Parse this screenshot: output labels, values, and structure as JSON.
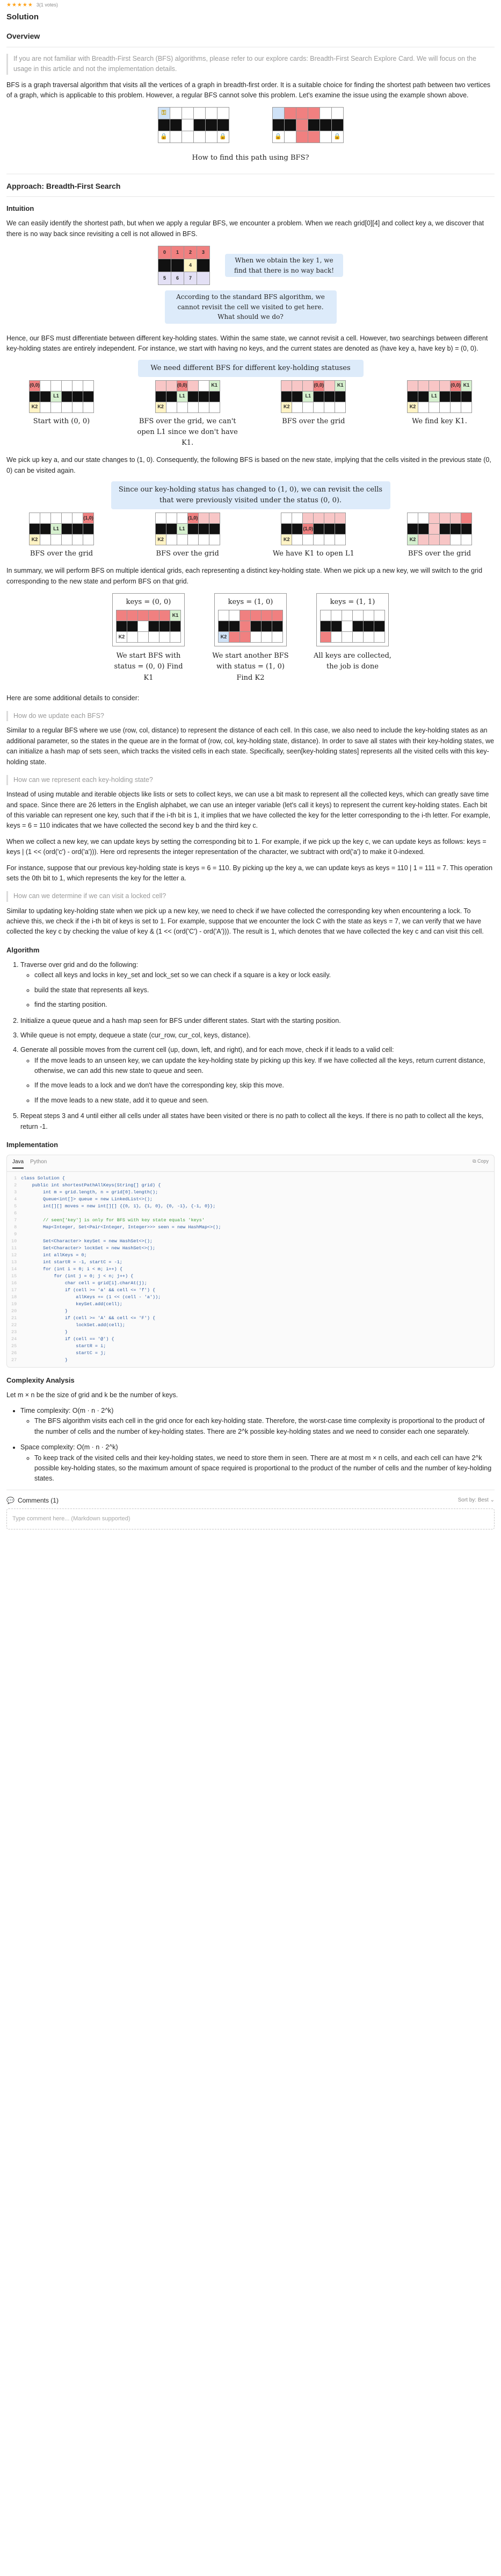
{
  "header": {
    "stars": "★★★★★",
    "votes": "3(1 votes)",
    "title": "Solution"
  },
  "overview": {
    "heading": "Overview",
    "quote": "If you are not familiar with Breadth-First Search (BFS) algorithms, please refer to our explore cards: Breadth-First Search Explore Card. We will focus on the usage in this article and not the implementation details.",
    "para": "BFS is a graph traversal algorithm that visits all the vertices of a graph in breadth-first order. It is a suitable choice for finding the shortest path between two vertices of a graph, which is applicable to this problem. However, a regular BFS cannot solve this problem. Let's examine the issue using the example shown above.",
    "caption": "How to find this path using BFS?"
  },
  "approach": {
    "heading": "Approach: Breadth-First Search",
    "intuition_heading": "Intuition",
    "intuition_p1": "We can easily identify the shortest path, but when we apply a regular BFS, we encounter a problem. When we reach grid[0][4] and collect key a, we discover that there is no way back since revisiting a cell is not allowed in BFS.",
    "fig2_note_right": "When we obtain the key 1, we find that there is no way back!",
    "fig2_note_bottom": "According to the standard BFS algorithm, we cannot revisit the cell we visited to get here. What should we do?",
    "p2": "Hence, our BFS must differentiate between different key-holding states. Within the same state, we cannot revisit a cell. However, two searchings between different key-holding states are entirely independent. For instance, we start with having no keys, and the current states are denoted as (have key a, have key b) = (0, 0).",
    "fig3_banner": "We need different BFS for different key-holding statuses",
    "fig3_captions": [
      "Start with (0, 0)",
      "BFS over the grid, we can't open L1 since we don't have K1.",
      "BFS over the grid",
      "We find key K1."
    ],
    "p3": "We pick up key a, and our state changes to (1, 0). Consequently, the following BFS is based on the new state, implying that the cells visited in the previous state (0, 0) can be visited again.",
    "fig4_banner": "Since our key-holding status has changed to (1, 0), we can revisit the cells that were previously visited under the status (0, 0).",
    "fig4_captions": [
      "BFS over the grid",
      "BFS over the grid",
      "We have K1 to open L1",
      "BFS over the grid"
    ],
    "p4": "In summary, we will perform BFS on multiple identical grids, each representing a distinct key-holding state. When we pick up a new key, we will switch to the grid corresponding to the new state and perform BFS on that grid.",
    "fig5_keys": [
      "keys = (0, 0)",
      "keys = (1, 0)",
      "keys = (1, 1)"
    ],
    "fig5_captions": [
      "We start BFS with status = (0, 0) Find K1",
      "We start another BFS with status = (1, 0) Find K2",
      "All keys are collected, the job is done"
    ],
    "p5": "Here are some additional details to consider:",
    "q1": "How do we update each BFS?",
    "q1_p": "Similar to a regular BFS where we use (row, col, distance) to represent the distance of each cell. In this case, we also need to include the key-holding states as an additional parameter, so the states in the queue are in the format of (row, col, key-holding state, distance). In order to save all states with their key-holding states, we can initialize a hash map of sets seen, which tracks the visited cells in each state. Specifically, seen[key-holding states] represents all the visited cells with this key-holding state.",
    "q2": "How can we represent each key-holding state?",
    "q2_p1": "Instead of using mutable and iterable objects like lists or sets to collect keys, we can use a bit mask to represent all the collected keys, which can greatly save time and space. Since there are 26 letters in the English alphabet, we can use an integer variable (let's call it keys) to represent the current key-holding states. Each bit of this variable can represent one key, such that if the i-th bit is 1, it implies that we have collected the key for the letter corresponding to the i-th letter. For example, keys = 6 = 110 indicates that we have collected the second key b and the third key c.",
    "q2_p2": "When we collect a new key, we can update keys by setting the corresponding bit to 1. For example, if we pick up the key c, we can update keys as follows: keys = keys | (1 << (ord('c') - ord('a'))). Here ord represents the integer representation of the character, we subtract with ord('a') to make it 0-indexed.",
    "q2_p3": "For instance, suppose that our previous key-holding state is keys = 6 = 110. By picking up the key a, we can update keys as keys = 110 | 1 = 111 = 7. This operation sets the 0th bit to 1, which represents the key for the letter a.",
    "q3": "How can we determine if we can visit a locked cell?",
    "q3_p": "Similar to updating key-holding state when we pick up a new key, we need to check if we have collected the corresponding key when encountering a lock. To achieve this, we check if the i-th bit of keys is set to 1. For example, suppose that we encounter the lock C with the state as keys = 7, we can verify that we have collected the key c by checking the value of key & (1 << (ord('C') - ord('A'))). The result is 1, which denotes that we have collected the key c and can visit this cell."
  },
  "algorithm": {
    "heading": "Algorithm",
    "steps": [
      "Traverse over grid and do the following:",
      "Initialize a queue queue and a hash map seen for BFS under different states. Start with the starting position.",
      "While queue is not empty, dequeue a state (cur_row, cur_col, keys, distance).",
      "Generate all possible moves from the current cell (up, down, left, and right), and for each move, check if it leads to a valid cell:",
      "Repeat steps 3 and 4 until either all cells under all states have been visited or there is no path to collect all the keys. If there is no path to collect all the keys, return -1."
    ],
    "substeps1": [
      "collect all keys and locks in key_set and lock_set so we can check if a square is a key or lock easily.",
      "build the state that represents all keys.",
      "find the starting position."
    ],
    "substeps4": [
      "If the move leads to an unseen key, we can update the key-holding state by picking up this key. If we have collected all the keys, return current distance, otherwise, we can add this new state to queue and seen.",
      "If the move leads to a lock and we don't have the corresponding key, skip this move.",
      "If the move leads to a new state, add it to queue and seen."
    ]
  },
  "implementation": {
    "heading": "Implementation",
    "tabs": [
      "Java",
      "Python"
    ],
    "copy_label": "⧉ Copy",
    "lines": [
      "class Solution {",
      "    public int shortestPathAllKeys(String[] grid) {",
      "        int m = grid.length, n = grid[0].length();",
      "        Queue<int[]> queue = new LinkedList<>();",
      "        int[][] moves = new int[][] {{0, 1}, {1, 0}, {0, -1}, {-1, 0}};",
      "",
      "        // seen['key'] is only for BFS with key state equals 'keys'",
      "        Map<Integer, Set<Pair<Integer, Integer>>> seen = new HashMap<>();",
      "",
      "        Set<Character> keySet = new HashSet<>();",
      "        Set<Character> lockSet = new HashSet<>();",
      "        int allKeys = 0;",
      "        int startR = -1, startC = -1;",
      "        for (int i = 0; i < m; i++) {",
      "            for (int j = 0; j < n; j++) {",
      "                char cell = grid[i].charAt(j);",
      "                if (cell >= 'a' && cell <= 'f') {",
      "                    allKeys += (1 << (cell - 'a'));",
      "                    keySet.add(cell);",
      "                }",
      "                if (cell >= 'A' && cell <= 'F') {",
      "                    lockSet.add(cell);",
      "                }",
      "                if (cell == '@') {",
      "                    startR = i;",
      "                    startC = j;",
      "                }"
    ]
  },
  "complexity": {
    "heading": "Complexity Analysis",
    "intro": "Let m × n be the size of grid and k be the number of keys.",
    "time_label": "Time complexity: O(m · n · 2^k)",
    "time_detail": "The BFS algorithm visits each cell in the grid once for each key-holding state. Therefore, the worst-case time complexity is proportional to the product of the number of cells and the number of key-holding states. There are 2^k possible key-holding states and we need to consider each one separately.",
    "space_label": "Space complexity: O(m · n · 2^k)",
    "space_detail": "To keep track of the visited cells and their key-holding states, we need to store them in seen. There are at most m × n cells, and each cell can have 2^k possible key-holding states, so the maximum amount of space required is proportional to the product of the number of cells and the number of key-holding states."
  },
  "comments": {
    "label": "Comments (1)",
    "sort_label": "Sort by: Best ⌄",
    "placeholder": "Type comment here... (Markdown supported)"
  },
  "figure_labels": {
    "k1": "K1",
    "k2": "K2",
    "l1": "L1",
    "l2": "L2",
    "cell_00": "(0,0)",
    "cell_10": "(1,0)",
    "cell_01": "(0,1)",
    "nums": [
      "0",
      "1",
      "2",
      "3",
      "4",
      "5",
      "6",
      "7"
    ]
  },
  "colors": {
    "accent": "#ffa116",
    "wall": "#111111",
    "visited": "#f08080",
    "banner": "#ddebfa"
  }
}
